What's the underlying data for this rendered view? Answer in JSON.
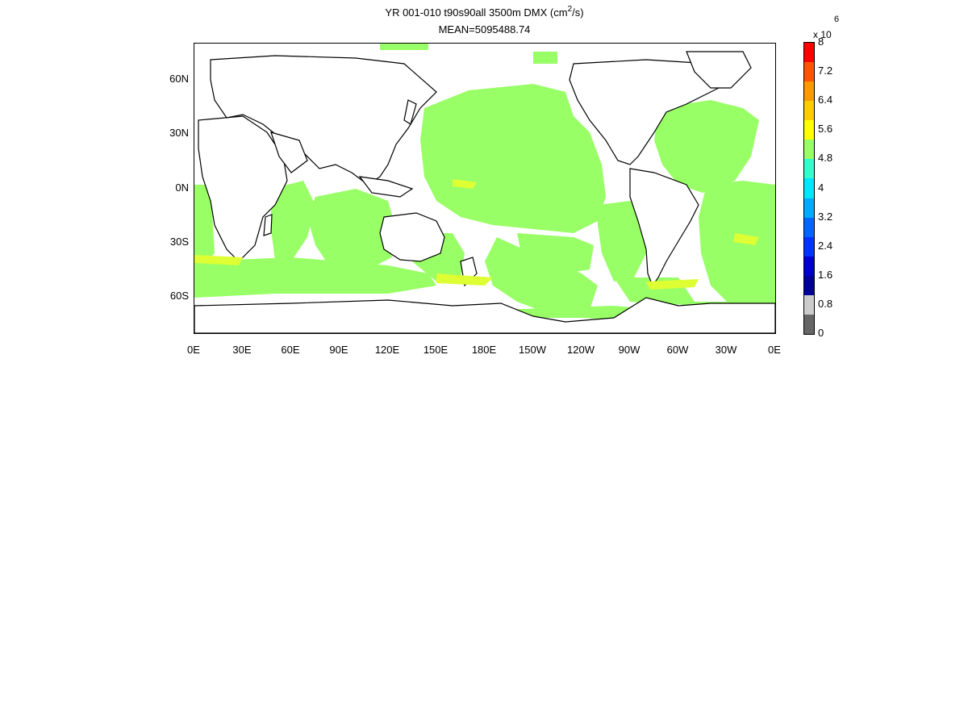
{
  "title": {
    "line1_pre": "YR 001-010 t90s90all 3500m DMX (cm",
    "line1_sup": "2",
    "line1_post": "/s)",
    "line2": "MEAN=5095488.74"
  },
  "map": {
    "x_tick_labels": [
      "0E",
      "30E",
      "60E",
      "90E",
      "120E",
      "150E",
      "180E",
      "150W",
      "120W",
      "90W",
      "60W",
      "30W",
      "0E"
    ],
    "y_tick_labels": [
      "60N",
      "30N",
      "0N",
      "30S",
      "60S"
    ],
    "ocean_color": "#99ff66",
    "high_color": "#ddff33",
    "land_color": "#ffffff",
    "coast_color": "#000000"
  },
  "colorbar": {
    "exponent_label": "x 10",
    "exponent_power": "6",
    "labels": [
      "8",
      "7.2",
      "6.4",
      "5.6",
      "4.8",
      "4",
      "3.2",
      "2.4",
      "1.6",
      "0.8",
      "0"
    ],
    "colors": [
      "#ff0000",
      "#ff5500",
      "#ff9900",
      "#ffcc00",
      "#ffff00",
      "#99ff66",
      "#33ffcc",
      "#00e6ff",
      "#00aaff",
      "#0066ff",
      "#0033ff",
      "#0000cc",
      "#000099",
      "#cccccc",
      "#666666"
    ]
  }
}
